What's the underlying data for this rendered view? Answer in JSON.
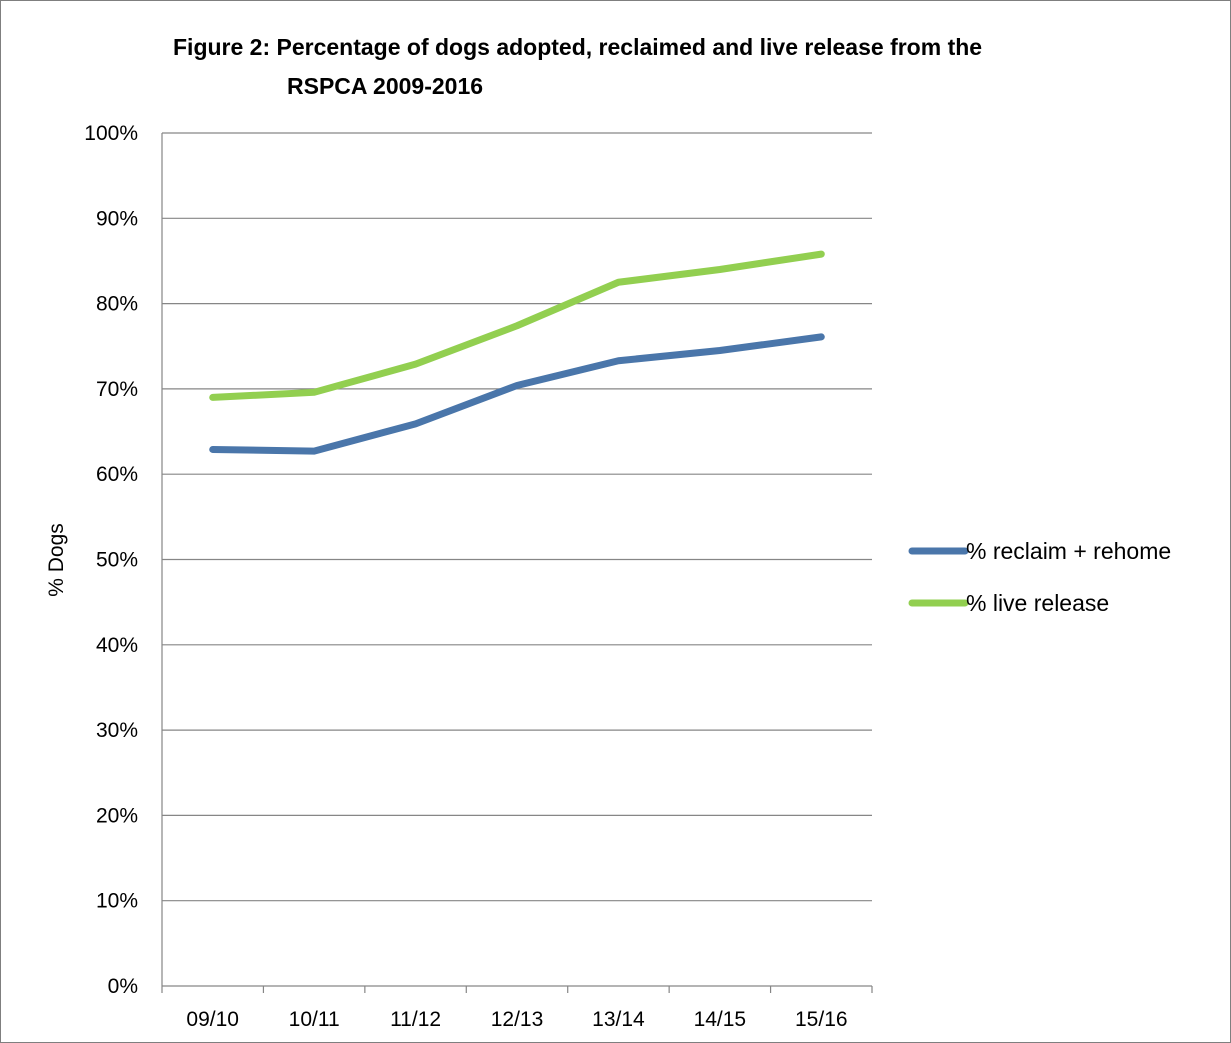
{
  "chart_data": {
    "type": "line",
    "title_lines": [
      "Figure 2: Percentage of dogs adopted, reclaimed and live release from the",
      "RSPCA 2009-2016"
    ],
    "xlabel": "",
    "ylabel": "% Dogs",
    "categories": [
      "09/10",
      "10/11",
      "11/12",
      "12/13",
      "13/14",
      "14/15",
      "15/16"
    ],
    "y_ticks": [
      "0%",
      "10%",
      "20%",
      "30%",
      "40%",
      "50%",
      "60%",
      "70%",
      "80%",
      "90%",
      "100%"
    ],
    "ylim": [
      0,
      100
    ],
    "grid": "horizontal",
    "legend_position": "right",
    "series": [
      {
        "name": "% reclaim + rehome",
        "color": "#4a76aa",
        "values": [
          62.9,
          62.7,
          65.9,
          70.4,
          73.3,
          74.5,
          76.1
        ]
      },
      {
        "name": "% live release",
        "color": "#92cf50",
        "values": [
          69.0,
          69.6,
          72.9,
          77.4,
          82.5,
          84.0,
          85.8
        ]
      }
    ]
  }
}
